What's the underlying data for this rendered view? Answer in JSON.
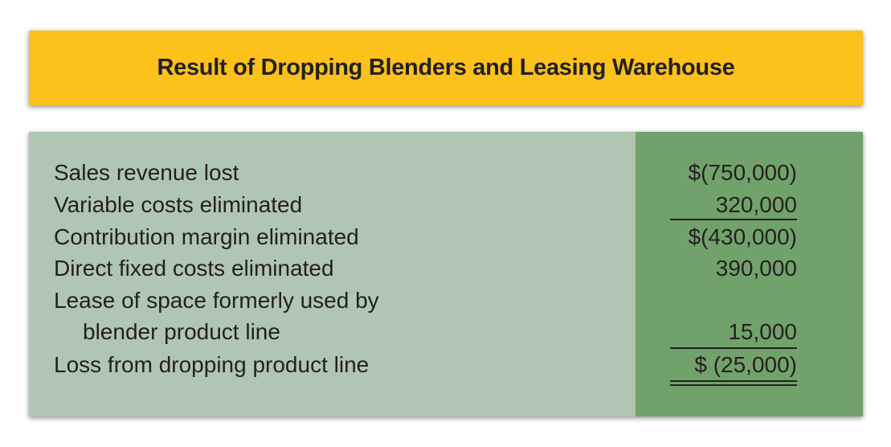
{
  "title": "Result of Dropping Blenders and Leasing Warehouse",
  "rows": [
    {
      "label": "Sales revenue lost",
      "value": "$(750,000)"
    },
    {
      "label": "Variable costs eliminated",
      "value": "320,000"
    },
    {
      "label": "Contribution margin eliminated",
      "value": "$(430,000)"
    },
    {
      "label": "Direct fixed costs eliminated",
      "value": "390,000"
    },
    {
      "label": "Lease of space formerly used by",
      "value": ""
    },
    {
      "label": "blender product line",
      "value": "15,000"
    },
    {
      "label": "Loss from dropping product line",
      "value": "$ (25,000)"
    }
  ],
  "colors": {
    "banner": "#fcc11a",
    "label_column": "#b1c6b2",
    "value_column": "#72a26b",
    "text": "#231f20"
  }
}
